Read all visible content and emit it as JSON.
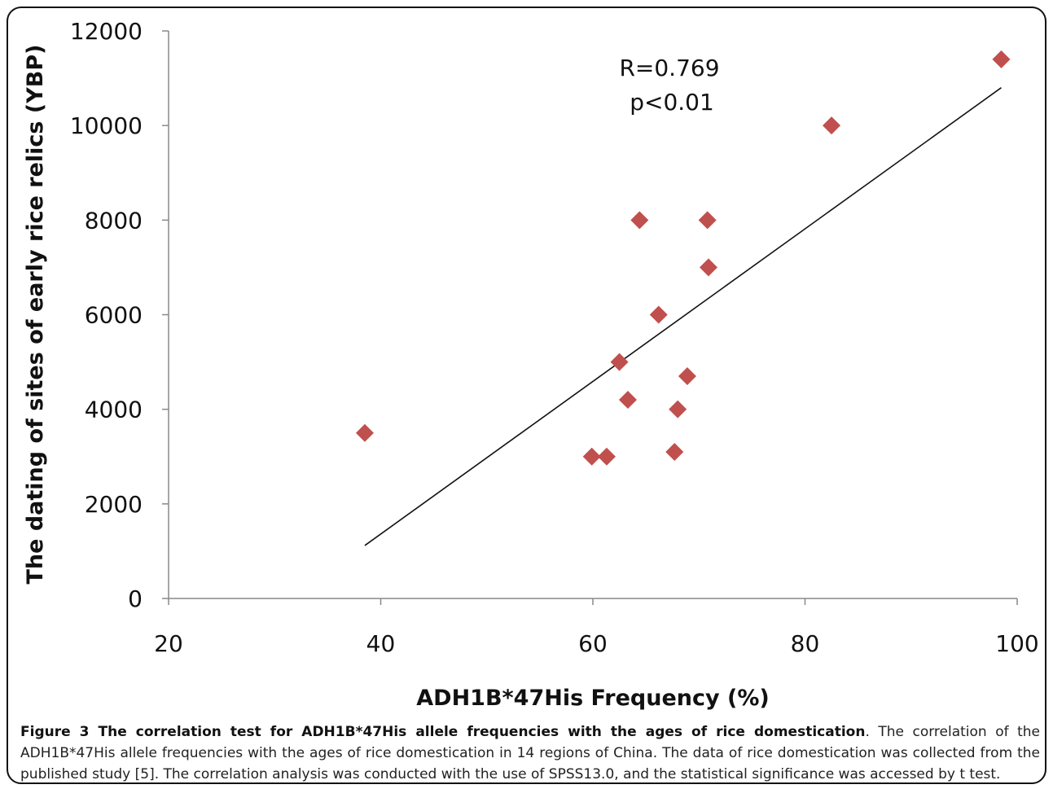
{
  "chart_data": {
    "type": "scatter",
    "title": "",
    "xlabel": "ADH1B*47His Frequency (%)",
    "ylabel": "The dating of sites of early rice relics (YBP)",
    "xlim": [
      20,
      100
    ],
    "ylim": [
      0,
      12000
    ],
    "xticks": [
      "20",
      "40",
      "60",
      "80",
      "100"
    ],
    "yticks": [
      "0",
      "2000",
      "4000",
      "6000",
      "8000",
      "10000",
      "12000"
    ],
    "marker": "diamond",
    "marker_color": "#c0504d",
    "points": [
      {
        "x": 38.5,
        "y": 3500
      },
      {
        "x": 59.9,
        "y": 3000
      },
      {
        "x": 61.3,
        "y": 3000
      },
      {
        "x": 62.5,
        "y": 5000
      },
      {
        "x": 63.3,
        "y": 4200
      },
      {
        "x": 64.4,
        "y": 8000
      },
      {
        "x": 66.2,
        "y": 6000
      },
      {
        "x": 67.7,
        "y": 3100
      },
      {
        "x": 68.0,
        "y": 4000
      },
      {
        "x": 68.9,
        "y": 4700
      },
      {
        "x": 70.8,
        "y": 8000
      },
      {
        "x": 70.9,
        "y": 7000
      },
      {
        "x": 82.5,
        "y": 10000
      },
      {
        "x": 98.5,
        "y": 11400
      }
    ],
    "trendline": {
      "x1": 38.5,
      "y1": 1120,
      "x2": 98.5,
      "y2": 10800,
      "color": "#111111"
    },
    "annotations": [
      "R=0.769",
      "p<0.01"
    ]
  },
  "caption": {
    "bold": "Figure 3 The correlation test for ADH1B*47His allele frequencies with the ages of rice domestication",
    "text": ". The correlation of the ADH1B*47His allele frequencies with the ages of rice domestication in 14 regions of China. The data of rice domestication was collected from the published study [5]. The correlation analysis was conducted with the use of SPSS13.0, and the statistical significance was accessed by t test."
  }
}
